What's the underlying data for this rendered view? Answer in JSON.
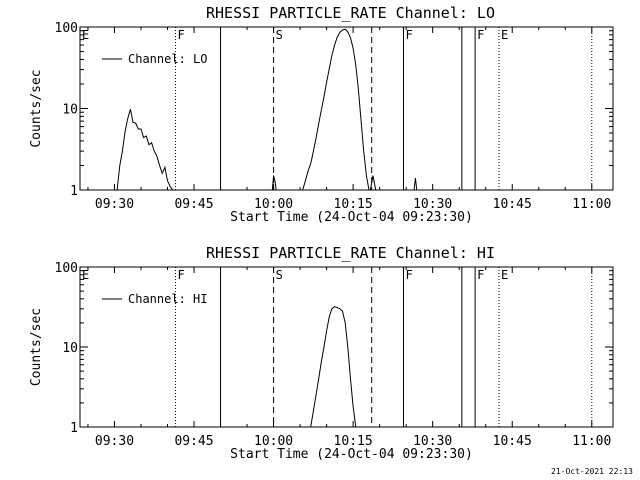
{
  "footer": {
    "stamp": "21-Oct-2021 22:13"
  },
  "chart_data": [
    {
      "type": "line",
      "title": "RHESSI PARTICLE_RATE Channel: LO",
      "xlabel": "Start Time (24-Oct-04 09:23:30)",
      "ylabel": "Counts/sec",
      "yscale": "log",
      "ylim": [
        1,
        100
      ],
      "xlim": [
        "09:23:30",
        "11:04:00"
      ],
      "grid": false,
      "legend": {
        "placement": "top-left",
        "entries": [
          "Channel: LO"
        ]
      },
      "x_ticks": [
        "09:30",
        "09:45",
        "10:00",
        "10:15",
        "10:30",
        "10:45",
        "11:00"
      ],
      "y_ticks": [
        "1",
        "10",
        "100"
      ],
      "markers": [
        {
          "label": "E",
          "time": "09:23:30",
          "style": "dotted"
        },
        {
          "label": "F",
          "time": "09:41:30",
          "style": "dotted"
        },
        {
          "label": "",
          "time": "09:50:00",
          "style": "solid"
        },
        {
          "label": "S",
          "time": "10:00:00",
          "style": "dashed"
        },
        {
          "label": "",
          "time": "10:18:30",
          "style": "dashed"
        },
        {
          "label": "F",
          "time": "10:24:30",
          "style": "solid"
        },
        {
          "label": "",
          "time": "10:35:30",
          "style": "solid"
        },
        {
          "label": "F",
          "time": "10:38:00",
          "style": "solid"
        },
        {
          "label": "E",
          "time": "10:42:30",
          "style": "dotted"
        },
        {
          "label": "",
          "time": "11:00:00",
          "style": "dotted"
        }
      ],
      "series": [
        {
          "name": "Channel: LO",
          "segments": [
            {
              "x": [
                "09:30:30",
                "09:31:00",
                "09:31:30",
                "09:32:00",
                "09:32:30",
                "09:33:00",
                "09:33:30",
                "09:34:00",
                "09:34:30",
                "09:35:00",
                "09:35:30",
                "09:36:00",
                "09:36:30",
                "09:37:00",
                "09:37:30",
                "09:38:00",
                "09:38:30",
                "09:39:00",
                "09:39:30",
                "09:40:00",
                "09:40:30",
                "09:41:00"
              ],
              "y": [
                1,
                2,
                3,
                5.2,
                7.5,
                9.8,
                6.8,
                6.6,
                5.6,
                5.6,
                4.4,
                4.6,
                3.6,
                3.8,
                3.0,
                2.6,
                2.0,
                1.6,
                1.9,
                1.3,
                1.1,
                1
              ]
            },
            {
              "x": [
                "09:59:45",
                "10:00:00",
                "10:00:15",
                "10:00:30"
              ],
              "y": [
                1,
                1.5,
                1.3,
                1
              ]
            },
            {
              "x": [
                "10:05:30",
                "10:06:00",
                "10:06:30",
                "10:07:00",
                "10:07:30",
                "10:08:00",
                "10:08:30",
                "10:09:00",
                "10:09:30",
                "10:10:00",
                "10:10:30",
                "10:11:00",
                "10:11:30",
                "10:12:00",
                "10:12:30",
                "10:13:00",
                "10:13:30",
                "10:14:00",
                "10:14:30",
                "10:15:00",
                "10:15:30",
                "10:16:00",
                "10:16:30",
                "10:17:00",
                "10:17:30",
                "10:18:00"
              ],
              "y": [
                1,
                1.3,
                1.7,
                2.1,
                3.0,
                4.3,
                6.5,
                9.5,
                14,
                21,
                31,
                45,
                60,
                75,
                86,
                92,
                94,
                87,
                74,
                55,
                34,
                17,
                7,
                3,
                1.5,
                1
              ]
            },
            {
              "x": [
                "10:18:15",
                "10:18:45",
                "10:19:15"
              ],
              "y": [
                1,
                1.5,
                1
              ]
            },
            {
              "x": [
                "10:26:30",
                "10:26:45",
                "10:27:00"
              ],
              "y": [
                1,
                1.4,
                1
              ]
            }
          ]
        }
      ]
    },
    {
      "type": "line",
      "title": "RHESSI PARTICLE_RATE Channel: HI",
      "xlabel": "Start Time (24-Oct-04 09:23:30)",
      "ylabel": "Counts/sec",
      "yscale": "log",
      "ylim": [
        1,
        100
      ],
      "xlim": [
        "09:23:30",
        "11:04:00"
      ],
      "grid": false,
      "legend": {
        "placement": "top-left",
        "entries": [
          "Channel: HI"
        ]
      },
      "x_ticks": [
        "09:30",
        "09:45",
        "10:00",
        "10:15",
        "10:30",
        "10:45",
        "11:00"
      ],
      "y_ticks": [
        "1",
        "10",
        "100"
      ],
      "markers": [
        {
          "label": "E",
          "time": "09:23:30",
          "style": "dotted"
        },
        {
          "label": "F",
          "time": "09:41:30",
          "style": "dotted"
        },
        {
          "label": "",
          "time": "09:50:00",
          "style": "solid"
        },
        {
          "label": "S",
          "time": "10:00:00",
          "style": "dashed"
        },
        {
          "label": "",
          "time": "10:18:30",
          "style": "dashed"
        },
        {
          "label": "F",
          "time": "10:24:30",
          "style": "solid"
        },
        {
          "label": "",
          "time": "10:35:30",
          "style": "solid"
        },
        {
          "label": "F",
          "time": "10:38:00",
          "style": "solid"
        },
        {
          "label": "E",
          "time": "10:42:30",
          "style": "dotted"
        },
        {
          "label": "",
          "time": "11:00:00",
          "style": "dotted"
        }
      ],
      "series": [
        {
          "name": "Channel: HI",
          "segments": [
            {
              "x": [
                "10:07:00",
                "10:07:30",
                "10:08:00",
                "10:08:30",
                "10:09:00",
                "10:09:30",
                "10:10:00",
                "10:10:30",
                "10:11:00",
                "10:11:30",
                "10:12:00",
                "10:12:30",
                "10:13:00",
                "10:13:30",
                "10:14:00",
                "10:14:30",
                "10:15:00",
                "10:15:30"
              ],
              "y": [
                1,
                1.6,
                2.5,
                4,
                6.5,
                10,
                16,
                24,
                30,
                32,
                31,
                30,
                28,
                20,
                10,
                4,
                1.8,
                1
              ]
            }
          ]
        }
      ]
    }
  ]
}
